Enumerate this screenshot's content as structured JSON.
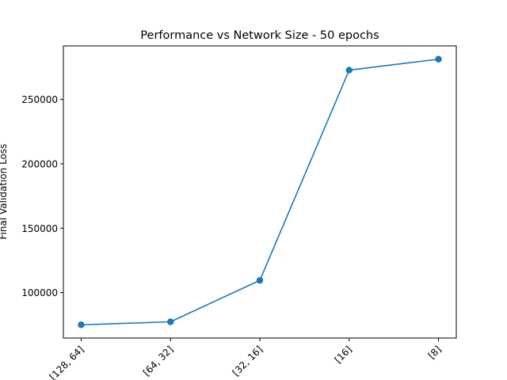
{
  "chart_data": {
    "type": "line",
    "title": "Performance vs Network Size - 50 epochs",
    "xlabel": "",
    "ylabel": "Final Validation Loss",
    "categories": [
      "[128, 64]",
      "[64, 32]",
      "[32, 16]",
      "[16]",
      "[8]"
    ],
    "series": [
      {
        "values": [
          75000,
          77300,
          109500,
          272800,
          281300
        ],
        "color": "#1f77b4",
        "marker": "circle"
      }
    ],
    "yticks": [
      100000,
      150000,
      200000,
      250000
    ],
    "ytick_labels": [
      "100000",
      "150000",
      "200000",
      "250000"
    ],
    "ylim": [
      64700,
      291600
    ],
    "grid": false,
    "legend": "none"
  }
}
